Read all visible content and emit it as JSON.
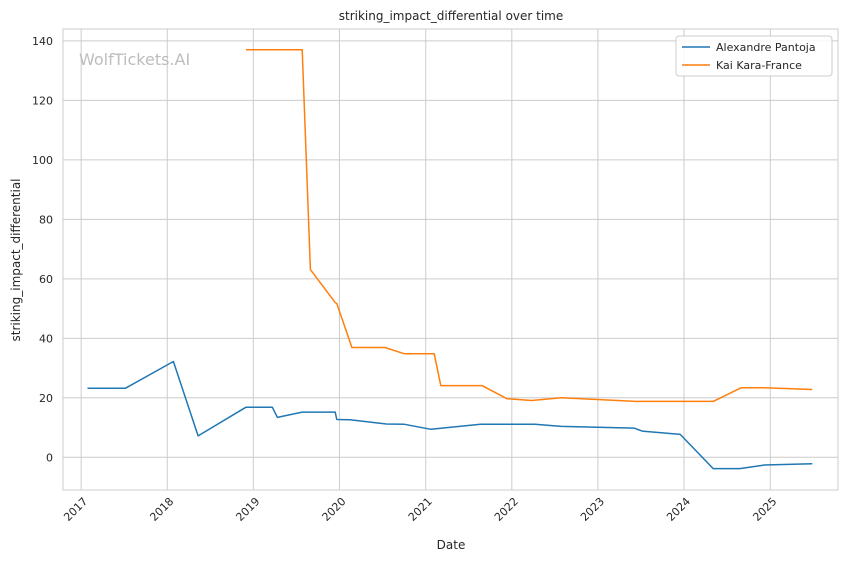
{
  "chart_data": {
    "type": "line",
    "title": "striking_impact_differential over time",
    "xlabel": "Date",
    "ylabel": "striking_impact_differential",
    "watermark": "WolfTickets.AI",
    "x_type": "date",
    "xlim": [
      "2016-10-16",
      "2025-10-15"
    ],
    "ylim": [
      -11,
      144
    ],
    "x_ticks": [
      "2017",
      "2018",
      "2019",
      "2020",
      "2021",
      "2022",
      "2023",
      "2024",
      "2025"
    ],
    "y_ticks": [
      0,
      20,
      40,
      60,
      80,
      100,
      120,
      140
    ],
    "grid": true,
    "legend_position": "top-right",
    "series": [
      {
        "name": "Alexandre Pantoja",
        "color": "#1f77b4",
        "points": [
          {
            "x": "2017-01-28",
            "y": 23.2
          },
          {
            "x": "2017-07-07",
            "y": 23.2
          },
          {
            "x": "2018-01-27",
            "y": 32.2
          },
          {
            "x": "2018-05-12",
            "y": 7.2
          },
          {
            "x": "2018-11-30",
            "y": 16.8
          },
          {
            "x": "2019-03-23",
            "y": 16.8
          },
          {
            "x": "2019-04-13",
            "y": 13.4
          },
          {
            "x": "2019-07-27",
            "y": 15.2
          },
          {
            "x": "2019-12-14",
            "y": 15.2
          },
          {
            "x": "2019-12-21",
            "y": 12.7
          },
          {
            "x": "2020-02-15",
            "y": 12.6
          },
          {
            "x": "2020-07-18",
            "y": 11.2
          },
          {
            "x": "2020-10-03",
            "y": 11.1
          },
          {
            "x": "2021-01-23",
            "y": 9.4
          },
          {
            "x": "2021-08-21",
            "y": 11.1
          },
          {
            "x": "2022-04-09",
            "y": 11.1
          },
          {
            "x": "2022-07-30",
            "y": 10.4
          },
          {
            "x": "2023-06-03",
            "y": 9.8
          },
          {
            "x": "2023-07-08",
            "y": 8.8
          },
          {
            "x": "2023-12-16",
            "y": 7.7
          },
          {
            "x": "2024-05-04",
            "y": -3.8
          },
          {
            "x": "2024-08-24",
            "y": -3.8
          },
          {
            "x": "2024-12-07",
            "y": -2.6
          },
          {
            "x": "2025-06-28",
            "y": -2.2
          }
        ]
      },
      {
        "name": "Kai Kara-France",
        "color": "#ff7f0e",
        "points": [
          {
            "x": "2018-12-01",
            "y": 137
          },
          {
            "x": "2019-07-27",
            "y": 137
          },
          {
            "x": "2019-08-31",
            "y": 63.1
          },
          {
            "x": "2019-12-14",
            "y": 52
          },
          {
            "x": "2019-12-21",
            "y": 51.7
          },
          {
            "x": "2020-02-23",
            "y": 36.9
          },
          {
            "x": "2020-07-12",
            "y": 36.9
          },
          {
            "x": "2020-10-03",
            "y": 34.8
          },
          {
            "x": "2021-02-06",
            "y": 34.8
          },
          {
            "x": "2021-03-06",
            "y": 24.1
          },
          {
            "x": "2021-08-28",
            "y": 24.1
          },
          {
            "x": "2021-12-11",
            "y": 19.7
          },
          {
            "x": "2022-03-26",
            "y": 19.1
          },
          {
            "x": "2022-07-30",
            "y": 20
          },
          {
            "x": "2023-06-10",
            "y": 18.8
          },
          {
            "x": "2024-05-04",
            "y": 18.8
          },
          {
            "x": "2024-08-31",
            "y": 23.4
          },
          {
            "x": "2024-12-07",
            "y": 23.4
          },
          {
            "x": "2025-06-28",
            "y": 22.8
          }
        ]
      }
    ]
  }
}
